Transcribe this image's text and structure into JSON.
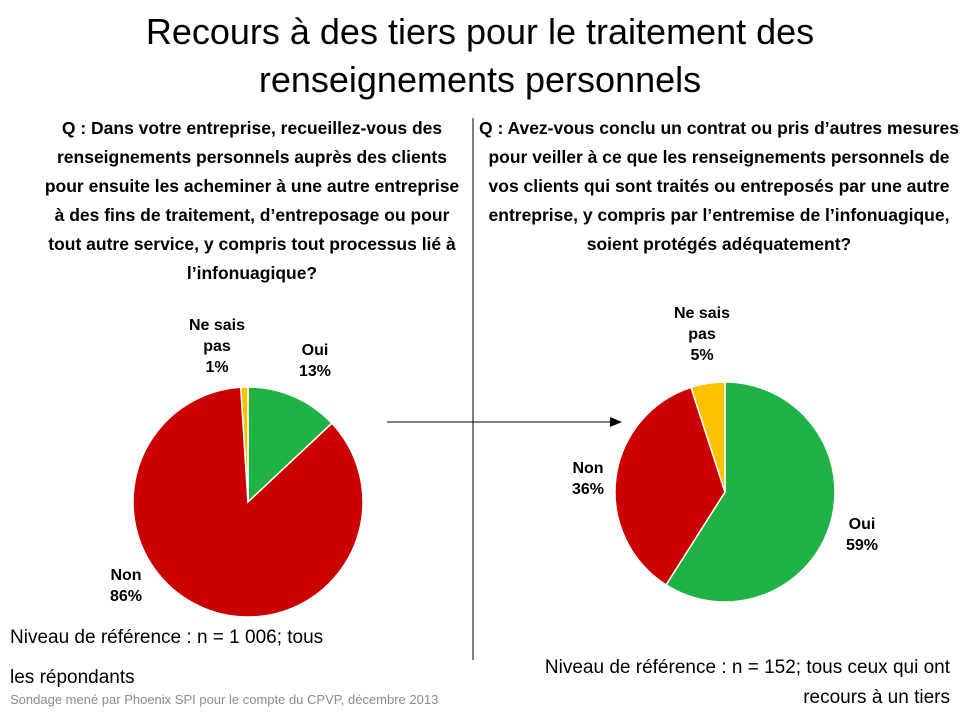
{
  "title": "Recours à des tiers pour le traitement des renseignements personnels",
  "chart_data": [
    {
      "type": "pie",
      "title": "Q : Dans votre entreprise, recueillez-vous des renseignements personnels auprès des clients pour ensuite les acheminer à une autre entreprise à des fins de traitement, d’entreposage ou pour tout autre service, y compris tout processus lié à l’infonuagique?",
      "categories": [
        "Oui",
        "Non",
        "Ne sais pas"
      ],
      "values": [
        13,
        86,
        1
      ],
      "value_labels": [
        "13%",
        "86%",
        "1%"
      ],
      "colors": [
        "#1fb345",
        "#cc0000",
        "#ffc000"
      ],
      "note": "Niveau de référence : n = 1 006; tous les répondants"
    },
    {
      "type": "pie",
      "title": "Q : Avez-vous conclu un contrat ou pris d’autres mesures pour veiller à ce que les renseignements personnels de vos clients qui sont traités ou entreposés par une autre entreprise, y compris par l’entremise de l’infonuagique, soient protégés adéquatement?",
      "categories": [
        "Oui",
        "Non",
        "Ne sais pas"
      ],
      "values": [
        59,
        36,
        5
      ],
      "value_labels": [
        "59%",
        "36%",
        "5%"
      ],
      "colors": [
        "#1fb345",
        "#cc0000",
        "#ffc000"
      ],
      "note": "Niveau de référence : n = 152; tous ceux qui ont recours à un tiers"
    }
  ],
  "source": "Sondage mené par Phoenix SPI pour le compte du CPVP, décembre 2013"
}
